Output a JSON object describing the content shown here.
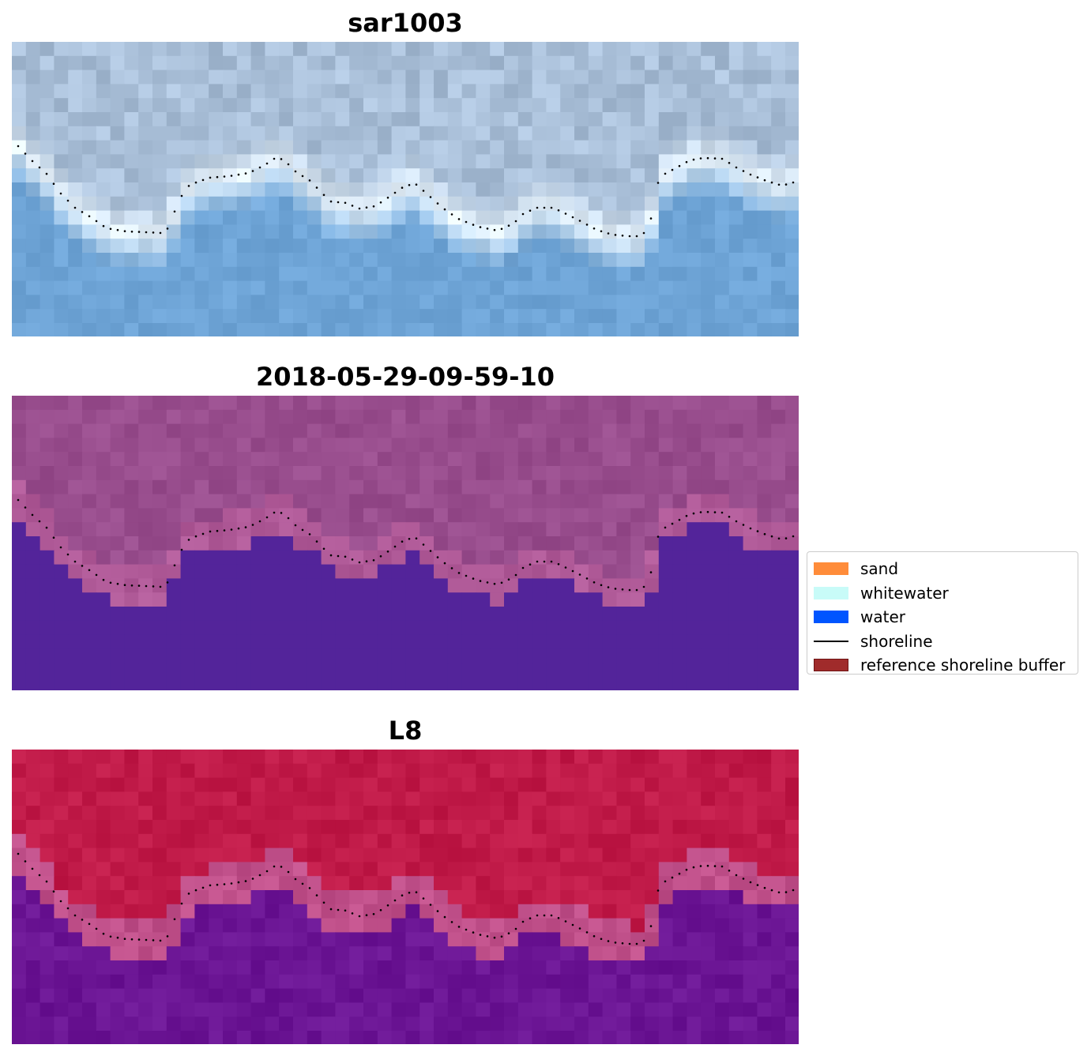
{
  "panels": [
    {
      "title": "sar1003",
      "style": "rgb"
    },
    {
      "title": "2018-05-29-09-59-10",
      "style": "classified"
    },
    {
      "title": "L8",
      "style": "index"
    }
  ],
  "legend": {
    "items": [
      {
        "label": "sand",
        "kind": "patch",
        "color": "#ff8c3a"
      },
      {
        "label": "whitewater",
        "kind": "patch",
        "color": "#c8fbf8"
      },
      {
        "label": "water",
        "kind": "patch",
        "color": "#0055ff"
      },
      {
        "label": "shoreline",
        "kind": "line",
        "color": "#000000"
      },
      {
        "label": "reference shoreline buffer",
        "kind": "patch",
        "color": "#a02b2b",
        "edge": "#6e1414"
      }
    ]
  },
  "colors": {
    "land_rgb": "#a9bfd8",
    "water_rgb": "#6ea4d6",
    "surf_rgb": "#e6f2fb",
    "land_classified": "#984d8d",
    "water_classified": "#53249a",
    "buffer_classified": "#b05a98",
    "land_index": "#c01a48",
    "water_index": "#6b1594",
    "buffer_index": "#c0508a"
  }
}
